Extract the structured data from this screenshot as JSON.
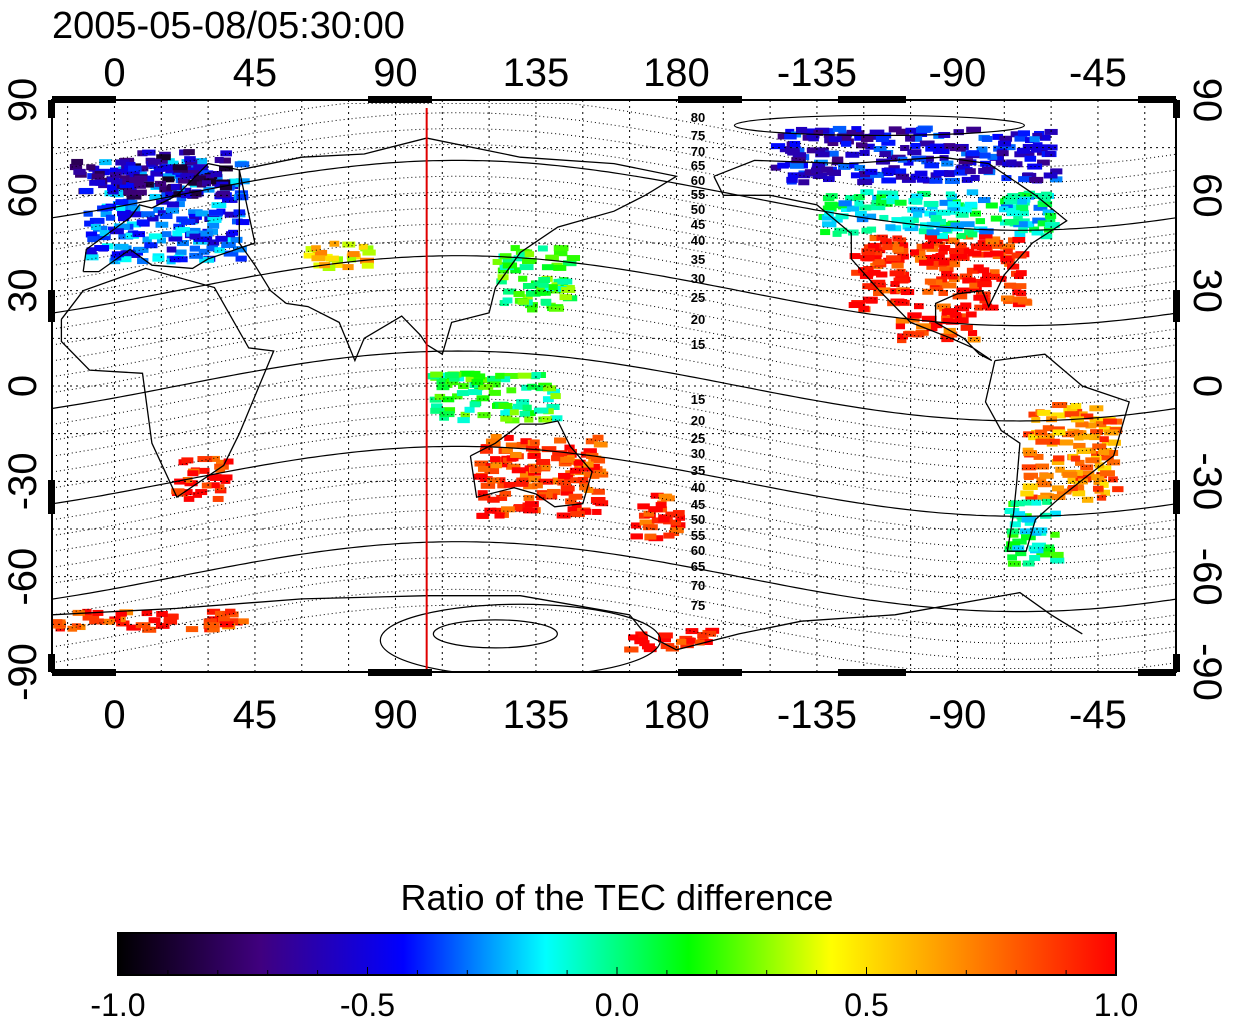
{
  "title": "2005-05-08/05:30:00",
  "map": {
    "lon_start": -20,
    "lon_span": 360,
    "lat_range": [
      -90,
      90
    ],
    "top_ticks": [
      "0",
      "45",
      "90",
      "135",
      "180",
      "-135",
      "-90",
      "-45"
    ],
    "bottom_ticks": [
      "0",
      "45",
      "90",
      "135",
      "180",
      "-135",
      "-90",
      "-45"
    ],
    "tick_lons": [
      0,
      45,
      90,
      135,
      180,
      225,
      270,
      315
    ],
    "left_ticks": [
      "90",
      "60",
      "30",
      "0",
      "-30",
      "-60",
      "-90"
    ],
    "right_ticks": [
      "90",
      "60",
      "30",
      "0",
      "-30",
      "-60",
      "-90"
    ],
    "tick_lats": [
      90,
      60,
      30,
      0,
      -30,
      -60,
      -90
    ],
    "grid": true,
    "meridian_marker_lon": 100,
    "meridian_marker_color": "#e00000"
  },
  "contour_labels_north": [
    "80",
    "75",
    "70",
    "65",
    "60",
    "55",
    "50",
    "45",
    "40",
    "35",
    "30",
    "25",
    "20",
    "15"
  ],
  "contour_labels_south": [
    "15",
    "20",
    "25",
    "30",
    "35",
    "40",
    "45",
    "50",
    "55",
    "60",
    "65",
    "70",
    "75"
  ],
  "colorbar": {
    "title": "Ratio of the TEC difference",
    "min": -1.0,
    "max": 1.0,
    "tick_labels": [
      "-1.0",
      "-0.5",
      "0.0",
      "0.5",
      "1.0"
    ],
    "tick_values": [
      -1.0,
      -0.5,
      0.0,
      0.5,
      1.0
    ],
    "colors": [
      "#000000",
      "#40007f",
      "#0000ff",
      "#00ffff",
      "#00ff00",
      "#ffff00",
      "#ff8000",
      "#ff0000"
    ]
  },
  "data_patches": [
    {
      "region": "europe",
      "lon": [
        -10,
        40
      ],
      "lat": [
        40,
        72
      ],
      "value": -0.35
    },
    {
      "region": "scandinavia",
      "lon": [
        0,
        35
      ],
      "lat": [
        60,
        75
      ],
      "value": -0.7
    },
    {
      "region": "north-atlantic",
      "lon": [
        -15,
        5
      ],
      "lat": [
        62,
        72
      ],
      "value": -0.6
    },
    {
      "region": "east-asia",
      "lon": [
        120,
        145
      ],
      "lat": [
        25,
        45
      ],
      "value": 0.1
    },
    {
      "region": "central-asia",
      "lon": [
        60,
        80
      ],
      "lat": [
        38,
        46
      ],
      "value": 0.5
    },
    {
      "region": "usa",
      "lon": [
        -125,
        -70
      ],
      "lat": [
        25,
        48
      ],
      "value": 0.95
    },
    {
      "region": "canada",
      "lon": [
        -135,
        -60
      ],
      "lat": [
        48,
        62
      ],
      "value": -0.1
    },
    {
      "region": "alaska-arctic",
      "lon": [
        -150,
        -60
      ],
      "lat": [
        65,
        82
      ],
      "value": -0.5
    },
    {
      "region": "mexico",
      "lon": [
        -110,
        -85
      ],
      "lat": [
        15,
        25
      ],
      "value": 0.9
    },
    {
      "region": "south-africa",
      "lon": [
        18,
        35
      ],
      "lat": [
        -35,
        -22
      ],
      "value": 0.95
    },
    {
      "region": "australia",
      "lon": [
        115,
        155
      ],
      "lat": [
        -40,
        -15
      ],
      "value": 0.9
    },
    {
      "region": "new-zealand",
      "lon": [
        165,
        180
      ],
      "lat": [
        -47,
        -33
      ],
      "value": 0.9
    },
    {
      "region": "south-america",
      "lon": [
        -70,
        -40
      ],
      "lat": [
        -35,
        -5
      ],
      "value": 0.7
    },
    {
      "region": "patagonia",
      "lon": [
        -75,
        -60
      ],
      "lat": [
        -55,
        -35
      ],
      "value": 0.0
    },
    {
      "region": "antarctica-coast-1",
      "lon": [
        -20,
        40
      ],
      "lat": [
        -76,
        -70
      ],
      "value": 0.9
    },
    {
      "region": "antarctica-coast-2",
      "lon": [
        160,
        190
      ],
      "lat": [
        -82,
        -76
      ],
      "value": 0.95
    },
    {
      "region": "indonesia",
      "lon": [
        100,
        140
      ],
      "lat": [
        -10,
        5
      ],
      "value": 0.1
    }
  ]
}
